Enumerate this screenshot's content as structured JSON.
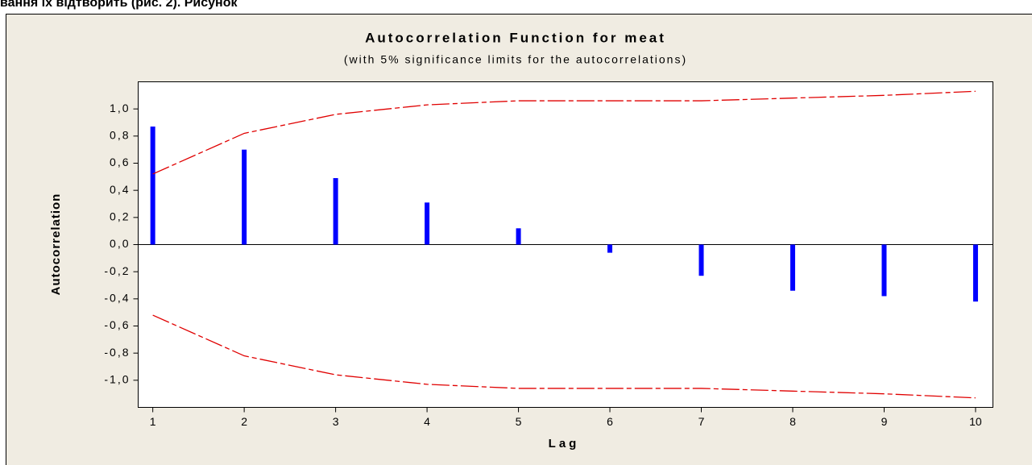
{
  "caption_fragment": "вання їх відтворить (рис. 2). Рисунок",
  "chart_data": {
    "type": "acf",
    "title": "Autocorrelation Function for meat",
    "subtitle": "(with 5% significance limits for the autocorrelations)",
    "x_label": "Lag",
    "y_label": "Autocorrelation",
    "x": [
      1,
      2,
      3,
      4,
      5,
      6,
      7,
      8,
      9,
      10
    ],
    "series": [
      {
        "name": "Autocorrelation",
        "color": "#0000ff",
        "values": [
          0.87,
          0.7,
          0.49,
          0.31,
          0.12,
          -0.06,
          -0.23,
          -0.34,
          -0.38,
          -0.42
        ]
      },
      {
        "name": "Upper limit",
        "color": "#e00000",
        "values": [
          0.52,
          0.82,
          0.96,
          1.03,
          1.06,
          1.06,
          1.06,
          1.08,
          1.1,
          1.13
        ]
      },
      {
        "name": "Lower limit",
        "color": "#e00000",
        "values": [
          -0.52,
          -0.82,
          -0.96,
          -1.03,
          -1.06,
          -1.06,
          -1.06,
          -1.08,
          -1.1,
          -1.13
        ]
      }
    ],
    "xlim": [
      0.84,
      10.19
    ],
    "xticks": [
      1,
      2,
      3,
      4,
      5,
      6,
      7,
      8,
      9,
      10
    ],
    "ylim": [
      -1.2,
      1.2
    ],
    "yticks": [
      {
        "value": -1,
        "label": "-1,0"
      },
      {
        "value": -0.8,
        "label": "-0,8"
      },
      {
        "value": -0.6,
        "label": "-0,6"
      },
      {
        "value": -0.4,
        "label": "-0,4"
      },
      {
        "value": -0.2,
        "label": "-0,2"
      },
      {
        "value": 0,
        "label": "0,0"
      },
      {
        "value": 0.2,
        "label": "0,2"
      },
      {
        "value": 0.4,
        "label": "0,4"
      },
      {
        "value": 0.6,
        "label": "0,6"
      },
      {
        "value": 0.8,
        "label": "0,8"
      },
      {
        "value": 1,
        "label": "1,0"
      }
    ]
  }
}
